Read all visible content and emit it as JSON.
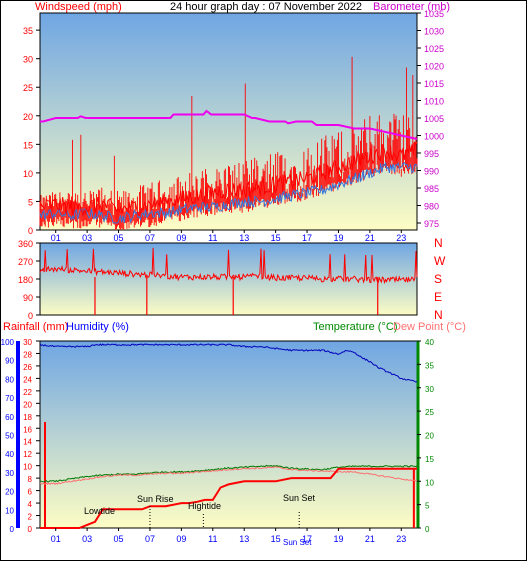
{
  "header": {
    "left_label": "Windspeed (mph)",
    "title": "24 hour graph day : 07 November 2022",
    "right_label": "Barometer (mb)"
  },
  "colors": {
    "wind": "#ff0000",
    "gust_bar": "#ff0000",
    "avg_wind": "#3377dd",
    "barometer": "#ee00ee",
    "direction": "#ff0000",
    "rain": "#ff0000",
    "humidity": "#0000bb",
    "temperature": "#007700",
    "dew_point": "#ff7070",
    "axis_blue": "#0000ff",
    "axis_green": "#008800",
    "axis_magenta": "#cc00cc",
    "axis_red": "#ff0000",
    "bg_top": "#6fa6e3",
    "bg_bottom": "#fdfdc4"
  },
  "x_ticks": [
    "01",
    "03",
    "05",
    "07",
    "09",
    "11",
    "13",
    "15",
    "17",
    "19",
    "21",
    "23"
  ],
  "direction_letters": [
    "N",
    "W",
    "S",
    "E",
    "N"
  ],
  "bottom_labels": {
    "rainfall": "Rainfall (mm)",
    "humidity": "Humidity (%)",
    "temperature": "Temperature (°C)",
    "dew_point": "Dew Point (°C)"
  },
  "events": {
    "lowtide": "Lowtide",
    "sunrise": "Sun Rise",
    "hightide": "Hightide",
    "sunset": "Sun Set",
    "sunset_axis": "Sun Set"
  },
  "chart_data": [
    {
      "type": "line",
      "title": "24 hour graph day : 07 November 2022",
      "ylabel": "Windspeed (mph)",
      "y2label": "Barometer (mb)",
      "x_unit": "hour",
      "xlim": [
        0,
        24
      ],
      "ylim": [
        0,
        38
      ],
      "y2lim": [
        973,
        1035
      ],
      "yticks": [
        0,
        5,
        10,
        15,
        20,
        25,
        30,
        35
      ],
      "y2ticks": [
        975,
        980,
        985,
        990,
        995,
        1000,
        1005,
        1010,
        1015,
        1020,
        1025,
        1030,
        1035
      ],
      "series": [
        {
          "name": "Windspeed (mph)",
          "axis": "left",
          "x": [
            0,
            1,
            2,
            3,
            4,
            5,
            6,
            7,
            8,
            9,
            10,
            11,
            12,
            13,
            14,
            15,
            16,
            17,
            18,
            19,
            20,
            21,
            22,
            23,
            24
          ],
          "values": [
            4,
            4.5,
            4,
            4,
            4.5,
            3.5,
            4,
            4.5,
            5,
            5.5,
            6,
            6.5,
            7,
            7,
            7.5,
            8,
            8.5,
            9,
            10,
            11,
            12,
            13,
            14,
            13,
            14
          ]
        },
        {
          "name": "",
          "axis": "left",
          "x": [
            0,
            1,
            2,
            3,
            4,
            5,
            6,
            7,
            8,
            9,
            10,
            11,
            12,
            13,
            14,
            15,
            16,
            17,
            18,
            19,
            20,
            21,
            22,
            23,
            24
          ],
          "values": [
            2.5,
            3,
            2.5,
            3,
            2.5,
            2,
            2.5,
            3,
            3,
            3.5,
            4,
            4,
            4.5,
            5,
            5,
            5.5,
            6,
            6.5,
            7,
            8,
            9,
            10,
            11,
            11,
            11
          ]
        },
        {
          "name": "Barometer (mb)",
          "axis": "right",
          "x": [
            0,
            0.2,
            1,
            1.2,
            2.4,
            2.6,
            2.9,
            3.4,
            3.6,
            5,
            7,
            8.3,
            8.5,
            10,
            10.4,
            10.6,
            10.9,
            11.3,
            11.5,
            13,
            13.5,
            13.7,
            14.6,
            14.8,
            15.6,
            15.8,
            16.3,
            16.6,
            17.3,
            17.6,
            19,
            20,
            20.8,
            21,
            22,
            23,
            24
          ],
          "values": [
            1004,
            1004,
            1005,
            1005,
            1005,
            1005.5,
            1005,
            1005,
            1005,
            1005,
            1005,
            1005,
            1006,
            1006,
            1006,
            1007,
            1006,
            1006,
            1006,
            1006,
            1005,
            1005,
            1004,
            1004,
            1004,
            1003.5,
            1004,
            1004,
            1004,
            1003,
            1003,
            1002,
            1002,
            1002,
            1001,
            1000,
            999
          ]
        }
      ]
    },
    {
      "type": "scatter",
      "ylabel": "",
      "xlim": [
        0,
        24
      ],
      "ylim": [
        0,
        360
      ],
      "yticks": [
        0,
        90,
        180,
        270,
        360
      ],
      "series": [
        {
          "name": "",
          "x": [
            0,
            1,
            2,
            3,
            4,
            5,
            6,
            7,
            8,
            9,
            10,
            11,
            12,
            13,
            14,
            15,
            16,
            17,
            18,
            19,
            20,
            21,
            22,
            23,
            24
          ],
          "values": [
            225,
            230,
            225,
            220,
            215,
            210,
            205,
            200,
            195,
            190,
            190,
            190,
            190,
            190,
            195,
            185,
            185,
            185,
            180,
            180,
            180,
            175,
            175,
            175,
            175
          ]
        }
      ]
    },
    {
      "type": "line",
      "xlim": [
        0,
        24
      ],
      "ylim_humidity": [
        0,
        100
      ],
      "ylim_rain": [
        0,
        30
      ],
      "ylim_temp": [
        0,
        40
      ],
      "yticks_humidity": [
        0,
        10,
        20,
        30,
        40,
        50,
        60,
        70,
        80,
        90,
        100
      ],
      "yticks_rain": [
        0,
        2,
        4,
        6,
        8,
        10,
        12,
        14,
        16,
        18,
        20,
        22,
        24,
        26,
        28,
        30
      ],
      "yticks_temp": [
        0,
        5,
        10,
        15,
        20,
        25,
        30,
        35,
        40
      ],
      "series": [
        {
          "name": "Humidity (%)",
          "axis": "humidity",
          "x": [
            0,
            1,
            2,
            3,
            3.5,
            4,
            6,
            8,
            10,
            12,
            13,
            14,
            15,
            16,
            17,
            18,
            18.5,
            19,
            19.5,
            20,
            20.5,
            21,
            21.5,
            22,
            22.5,
            23,
            23.5,
            24
          ],
          "values": [
            98,
            97,
            97,
            97,
            98,
            98,
            98,
            98,
            98,
            98,
            97,
            97,
            96,
            95,
            95,
            95,
            94,
            93,
            95,
            94,
            91,
            89,
            86,
            84,
            82,
            80,
            79,
            78
          ]
        },
        {
          "name": "Temperature (°C)",
          "axis": "temp",
          "x": [
            0,
            1,
            2,
            3,
            4,
            5,
            6,
            7,
            8,
            9,
            10,
            11,
            12,
            13,
            14,
            15,
            16,
            17,
            18,
            19,
            20,
            21,
            22,
            23,
            24
          ],
          "values": [
            10,
            10,
            10.5,
            11,
            11.3,
            11.5,
            11.5,
            11.8,
            12,
            12,
            12.2,
            12.5,
            12.8,
            13,
            13.2,
            13.3,
            12.8,
            12.6,
            12.5,
            13,
            13.2,
            13.2,
            13.2,
            13.2,
            13.2
          ]
        },
        {
          "name": "Dew Point (°C)",
          "axis": "temp",
          "x": [
            0,
            1,
            2,
            3,
            4,
            5,
            6,
            7,
            8,
            9,
            10,
            11,
            12,
            13,
            14,
            15,
            16,
            17,
            18,
            19,
            20,
            21,
            22,
            23,
            24
          ],
          "values": [
            9.5,
            9.5,
            10,
            10.5,
            11,
            11.3,
            11.3,
            11.5,
            11.7,
            11.7,
            12,
            12.2,
            12.5,
            12.7,
            12.8,
            13,
            12.5,
            12.3,
            12.2,
            12,
            12,
            11.5,
            11,
            10.5,
            10
          ]
        },
        {
          "name": "Rainfall (mm)",
          "axis": "rain",
          "x": [
            0,
            2.5,
            3,
            3.5,
            4,
            5,
            6,
            6.5,
            7,
            8,
            9,
            9.5,
            10,
            10.5,
            11,
            11.5,
            12,
            13,
            14,
            15,
            16,
            17,
            18,
            18.5,
            19,
            20,
            21,
            22,
            23,
            24
          ],
          "values": [
            0,
            0,
            0.5,
            1,
            3,
            3,
            3,
            3,
            3.5,
            3.5,
            4,
            4,
            4.2,
            4.5,
            4.5,
            6.5,
            7,
            7.5,
            7.5,
            7.5,
            8,
            8,
            8,
            8,
            9.5,
            9.5,
            9.5,
            9.5,
            9.5,
            9.5
          ]
        }
      ]
    }
  ]
}
